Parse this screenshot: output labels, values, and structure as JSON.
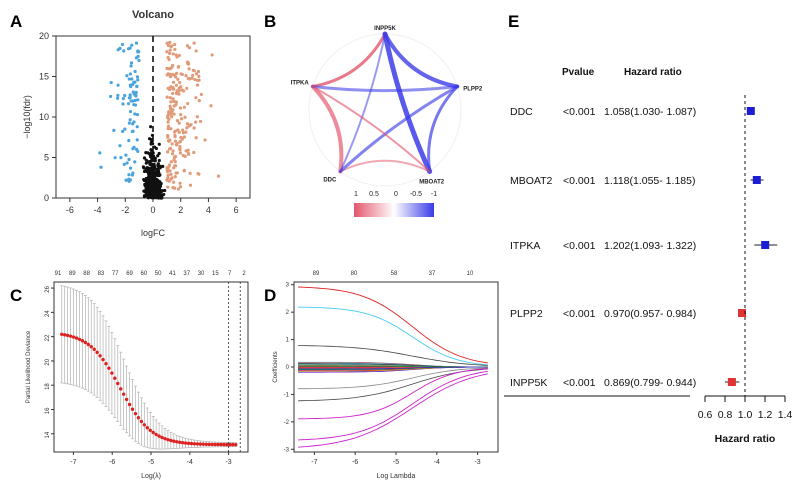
{
  "panel_labels": {
    "a": "A",
    "b": "B",
    "c": "C",
    "d": "D",
    "e": "E"
  },
  "chart_data": [
    {
      "id": "A",
      "type": "scatter",
      "title": "Volcano",
      "xlabel": "logFC",
      "ylabel": "−log10(fdr)",
      "xlim": [
        -7,
        7
      ],
      "ylim": [
        0,
        20
      ],
      "xticks": [
        "-6",
        "-4",
        "-2",
        "0",
        "2",
        "4",
        "6"
      ],
      "yticks": [
        "0",
        "5",
        "10",
        "15",
        "20"
      ],
      "threshold_logfc": 0,
      "colors": {
        "down": "#4aa3dc",
        "up": "#e19a78",
        "ns": "#111111"
      }
    },
    {
      "id": "B",
      "type": "network",
      "nodes": [
        "INPP5K",
        "PLPP2",
        "MBOAT2",
        "DDC",
        "ITPKA"
      ],
      "legend_ticks": [
        "1",
        "0.5",
        "0",
        "-0.5",
        "-1"
      ],
      "colors": {
        "positive": "#e3566c",
        "negative": "#3a3ae8"
      }
    },
    {
      "id": "C",
      "type": "line",
      "xlabel": "Log(λ)",
      "ylabel": "Partial Likelihood Deviance",
      "xlim": [
        -7.5,
        -2.5
      ],
      "ylim": [
        12.5,
        26.5
      ],
      "xticks": [
        "-7",
        "-6",
        "-5",
        "-4",
        "-3"
      ],
      "yticks": [
        "14",
        "16",
        "18",
        "20",
        "22",
        "24",
        "26"
      ],
      "top_ticks": [
        "91",
        "89",
        "88",
        "83",
        "77",
        "69",
        "60",
        "50",
        "41",
        "37",
        "30",
        "15",
        "7",
        "2"
      ],
      "lambda_min": -3.0,
      "lambda_1se": -2.7,
      "color": "#dd2222"
    },
    {
      "id": "D",
      "type": "line",
      "xlabel": "Log Lambda",
      "ylabel": "Coefficients",
      "xlim": [
        -7.5,
        -2.5
      ],
      "ylim": [
        -3.1,
        3.1
      ],
      "xticks": [
        "-7",
        "-6",
        "-5",
        "-4",
        "-3"
      ],
      "yticks": [
        "-3",
        "-2",
        "-1",
        "0",
        "1",
        "2",
        "3"
      ],
      "top_ticks": [
        "89",
        "80",
        "58",
        "37",
        "10"
      ]
    },
    {
      "id": "E",
      "type": "forest",
      "col_pvalue": "Pvalue",
      "col_hr": "Hazard ratio",
      "xlabel": "Hazard ratio",
      "xticks": [
        "0.6",
        "0.8",
        "1.0",
        "1.2",
        "1.4"
      ],
      "xlim": [
        0.6,
        1.4
      ],
      "reference": 1.0,
      "rows": [
        {
          "gene": "DDC",
          "p": "<0.001",
          "hr_text": "1.058(1.030- 1.087)",
          "hr": 1.058,
          "lo": 1.03,
          "hi": 1.087,
          "color": "#1c1cd6"
        },
        {
          "gene": "MBOAT2",
          "p": "<0.001",
          "hr_text": "1.118(1.055- 1.185)",
          "hr": 1.118,
          "lo": 1.055,
          "hi": 1.185,
          "color": "#1c1cd6"
        },
        {
          "gene": "ITPKA",
          "p": "<0.001",
          "hr_text": "1.202(1.093- 1.322)",
          "hr": 1.202,
          "lo": 1.093,
          "hi": 1.322,
          "color": "#1c1cd6"
        },
        {
          "gene": "PLPP2",
          "p": "<0.001",
          "hr_text": "0.970(0.957- 0.984)",
          "hr": 0.97,
          "lo": 0.957,
          "hi": 0.984,
          "color": "#e03434"
        },
        {
          "gene": "INPP5K",
          "p": "<0.001",
          "hr_text": "0.869(0.799- 0.944)",
          "hr": 0.869,
          "lo": 0.799,
          "hi": 0.944,
          "color": "#e03434"
        }
      ]
    }
  ]
}
